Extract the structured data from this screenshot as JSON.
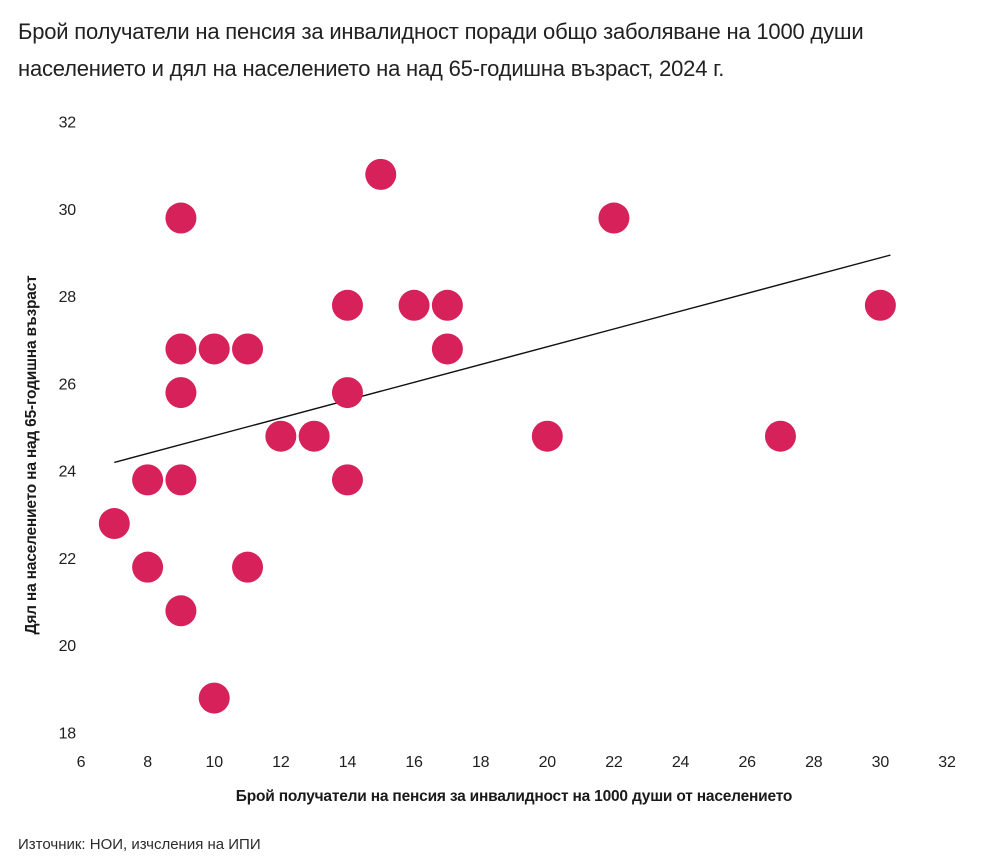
{
  "title_lines": [
    "Брой получатели на пенсия за инвалидност поради общо заболяване на 1000 души",
    "населението и дял на населението на над 65-годишна възраст, 2024 г."
  ],
  "source": "Източник: НОИ, изчсления на ИПИ",
  "colors": {
    "dot": "#d6215b",
    "trend_line": "#111111",
    "title_text": "#212121",
    "tick_text": "#1f1f1f"
  },
  "chart_data": {
    "type": "scatter",
    "title": "Брой получатели на пенсия за инвалидност поради общо заболяване на 1000 души населението и дял на населението на над 65-годишна възраст, 2024 г.",
    "xlabel": "Брой получатели на пенсия за инвалидност на 1000 души от населението",
    "ylabel": "Дял на населението на над 65-годишна възраст",
    "xlim": [
      6,
      32
    ],
    "ylim": [
      18,
      32
    ],
    "xticks": [
      6,
      8,
      10,
      12,
      14,
      16,
      18,
      20,
      22,
      24,
      26,
      28,
      30,
      32
    ],
    "yticks": [
      18,
      20,
      22,
      24,
      26,
      28,
      30,
      32
    ],
    "grid": false,
    "legend": false,
    "points": [
      [
        15,
        30.8
      ],
      [
        9,
        29.8
      ],
      [
        22,
        29.8
      ],
      [
        14,
        27.8
      ],
      [
        16,
        27.8
      ],
      [
        17,
        27.8
      ],
      [
        30,
        27.8
      ],
      [
        9,
        26.8
      ],
      [
        10,
        26.8
      ],
      [
        11,
        26.8
      ],
      [
        17,
        26.8
      ],
      [
        9,
        25.8
      ],
      [
        14,
        25.8
      ],
      [
        12,
        24.8
      ],
      [
        13,
        24.8
      ],
      [
        20,
        24.8
      ],
      [
        27,
        24.8
      ],
      [
        8,
        23.8
      ],
      [
        9,
        23.8
      ],
      [
        14,
        23.8
      ],
      [
        7,
        22.8
      ],
      [
        8,
        21.8
      ],
      [
        11,
        21.8
      ],
      [
        9,
        20.8
      ],
      [
        10,
        18.8
      ]
    ],
    "trendline": {
      "x1": 7.0,
      "y1": 24.2,
      "x2": 30.3,
      "y2": 28.95
    }
  }
}
